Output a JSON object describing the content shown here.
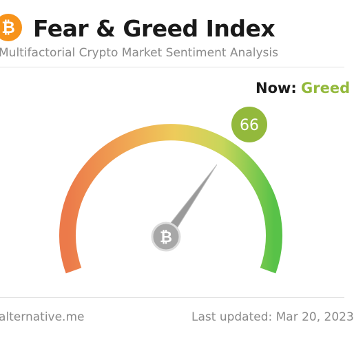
{
  "header": {
    "logo_glyph": "₿",
    "logo_color": "#f7931a",
    "title": "Fear & Greed Index",
    "subtitle": "Multifactorial Crypto Market Sentiment Analysis"
  },
  "now": {
    "label": "Now:",
    "classification": "Greed",
    "classification_color": "#93b93c"
  },
  "gauge": {
    "value": "66",
    "min": 0,
    "max": 100,
    "badge_color": "#93b93c",
    "hub_glyph": "₿",
    "gradient_colors": [
      "#ec7a4a",
      "#f0a453",
      "#eecb5a",
      "#c8d65a",
      "#58c248"
    ]
  },
  "footer": {
    "source": "alternative.me",
    "last_updated": "Last updated: Mar 20, 2023"
  }
}
